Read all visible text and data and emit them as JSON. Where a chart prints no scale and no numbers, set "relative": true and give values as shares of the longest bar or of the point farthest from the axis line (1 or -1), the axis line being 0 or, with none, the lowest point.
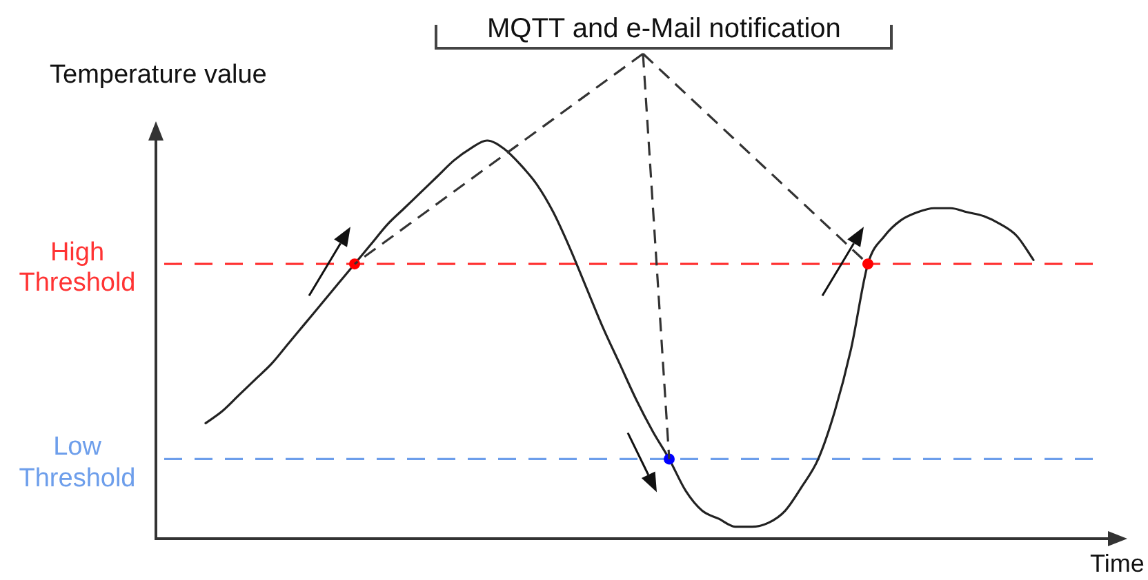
{
  "chart_data": {
    "type": "line",
    "relative": true,
    "ylabel": "Temperature value",
    "xlabel": "Time",
    "annotations": [
      "MQTT and e-Mail notification"
    ],
    "categories": [
      null,
      null,
      null,
      null,
      null,
      null,
      null,
      null,
      null,
      null,
      null,
      null,
      null,
      null,
      null,
      null,
      null,
      null,
      null,
      null,
      null,
      null,
      null,
      null,
      null,
      null,
      null,
      null,
      null,
      null,
      null,
      null,
      null,
      null,
      null,
      null,
      null,
      null,
      null,
      null,
      null,
      null,
      null,
      null,
      null,
      null,
      null,
      null,
      null,
      null,
      null,
      null,
      null,
      null,
      null,
      null,
      null,
      null
    ],
    "series": [
      {
        "type": "line",
        "color": "#222222",
        "marker": "none",
        "values": [
          null,
          null,
          null,
          0.29,
          0.32,
          0.36,
          0.4,
          0.44,
          0.49,
          0.54,
          0.59,
          0.64,
          0.69,
          0.74,
          0.79,
          0.83,
          0.87,
          0.91,
          0.95,
          0.98,
          1,
          0.98,
          0.94,
          0.89,
          0.82,
          0.73,
          0.63,
          0.53,
          0.44,
          0.35,
          0.27,
          0.2,
          0.12,
          0.07,
          0.05,
          0.03,
          0.03,
          0.04,
          0.07,
          0.13,
          0.2,
          0.32,
          0.48,
          0.69,
          0.76,
          0.8,
          0.82,
          0.83,
          0.83,
          0.82,
          0.81,
          0.79,
          0.76,
          0.7,
          null,
          null,
          null,
          null
        ]
      },
      {
        "type": "line",
        "color": "#ff0000",
        "marker": "circle",
        "values": [
          null,
          null,
          null,
          null,
          null,
          null,
          null,
          null,
          null,
          null,
          null,
          null,
          0.69,
          null,
          null,
          null,
          null,
          null,
          null,
          null,
          null,
          null,
          null,
          null,
          null,
          null,
          null,
          null,
          null,
          null,
          null,
          null,
          null,
          null,
          null,
          null,
          null,
          null,
          null,
          null,
          null,
          null,
          null,
          null,
          null,
          null,
          null,
          null,
          null,
          null,
          null,
          null,
          null,
          null,
          null,
          null,
          null,
          null
        ]
      },
      {
        "type": "line",
        "color": "#0000ff",
        "marker": "circle",
        "values": [
          null,
          null,
          null,
          null,
          null,
          null,
          null,
          null,
          null,
          null,
          null,
          null,
          null,
          null,
          null,
          null,
          null,
          null,
          null,
          null,
          null,
          null,
          null,
          null,
          null,
          null,
          null,
          null,
          null,
          null,
          null,
          0.2,
          null,
          null,
          null,
          null,
          null,
          null,
          null,
          null,
          null,
          null,
          null,
          null,
          null,
          null,
          null,
          null,
          null,
          null,
          null,
          null,
          null,
          null,
          null,
          null,
          null,
          null
        ]
      },
      {
        "type": "line",
        "color": "#ff0000",
        "marker": "circle",
        "values": [
          null,
          null,
          null,
          null,
          null,
          null,
          null,
          null,
          null,
          null,
          null,
          null,
          null,
          null,
          null,
          null,
          null,
          null,
          null,
          null,
          null,
          null,
          null,
          null,
          null,
          null,
          null,
          null,
          null,
          null,
          null,
          null,
          null,
          null,
          null,
          null,
          null,
          null,
          null,
          null,
          null,
          null,
          null,
          0.69,
          null,
          null,
          null,
          null,
          null,
          null,
          null,
          null,
          null,
          null,
          null,
          null,
          null,
          null
        ]
      }
    ],
    "ref_lines": [
      {
        "axis": "y",
        "value": 0.69,
        "label": "High Threshold",
        "color": "#ff3333",
        "line_style": "dashed"
      },
      {
        "axis": "y",
        "value": 0.2,
        "label": "Low Threshold",
        "color": "#6d9eeb",
        "line_style": "dashed"
      }
    ],
    "grid": false,
    "legend": false,
    "tick_labels": false
  }
}
